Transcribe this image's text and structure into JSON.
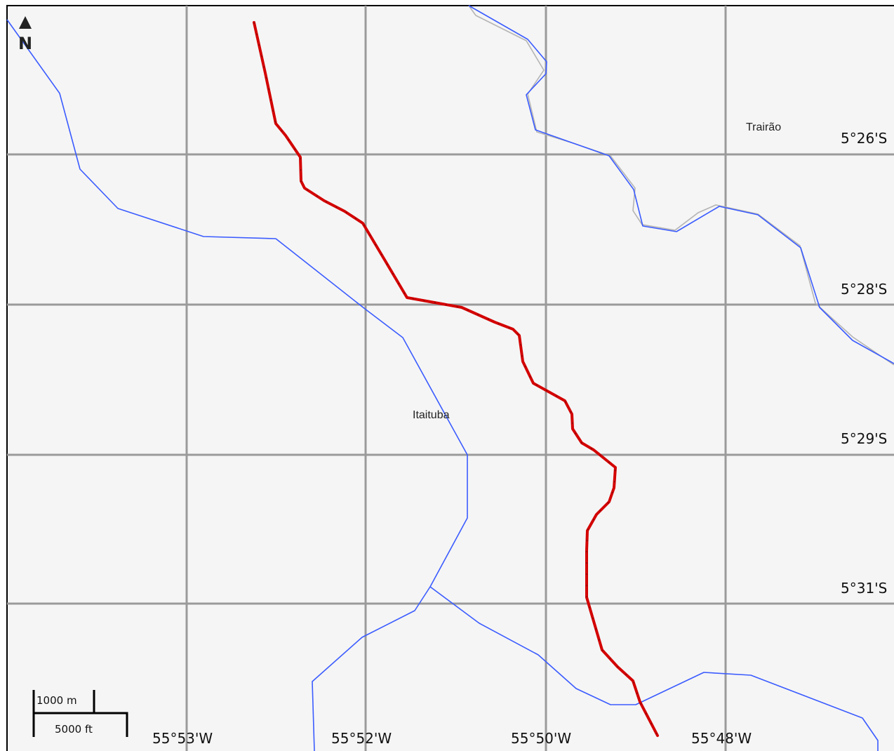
{
  "map": {
    "background": "#f5f5f5",
    "grid_color": "#9a9a9a",
    "river_color": "#3b5cff",
    "track_color": "#d40000"
  },
  "north_arrow": {
    "label": "N",
    "icon": "north-arrow-icon"
  },
  "latitude_labels": [
    "5°26'S",
    "5°28'S",
    "5°29'S",
    "5°31'S"
  ],
  "longitude_labels": [
    "55°53'W",
    "55°52'W",
    "55°50'W",
    "55°48'W"
  ],
  "places": [
    {
      "name": "Trairão"
    },
    {
      "name": "Itaituba"
    }
  ],
  "scale_bar": {
    "metric_label": "1000 m",
    "imperial_label": "5000 ft"
  }
}
